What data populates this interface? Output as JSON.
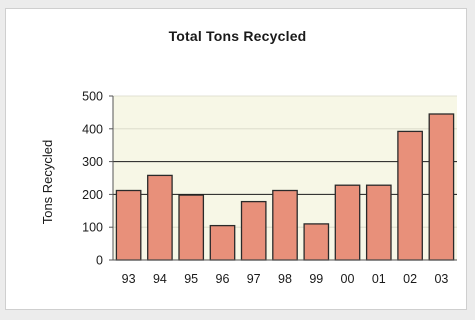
{
  "chart_data": {
    "type": "bar",
    "title": "Total Tons Recycled",
    "xlabel": "",
    "ylabel": "Tons Recycled",
    "categories": [
      "93",
      "94",
      "95",
      "96",
      "97",
      "98",
      "99",
      "00",
      "01",
      "02",
      "03"
    ],
    "values": [
      212,
      258,
      198,
      105,
      178,
      212,
      110,
      228,
      228,
      392,
      445
    ],
    "ylim": [
      0,
      500
    ],
    "yticks": [
      "0",
      "100",
      "200",
      "300",
      "400",
      "500"
    ],
    "grid": true,
    "legend": "none",
    "colors": {
      "bar_fill": "#e8907a",
      "bar_stroke": "#2a2a2a",
      "plot_background": "#f7f7e6",
      "gridline": "#1a1a1a",
      "axis": "#555555",
      "text": "#1a1a1a"
    }
  }
}
